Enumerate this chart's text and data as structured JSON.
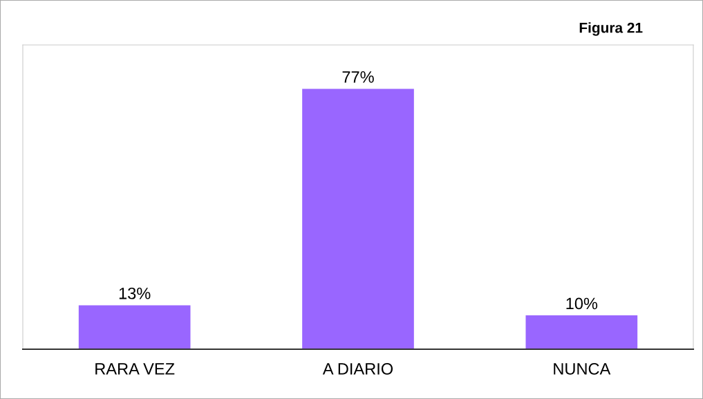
{
  "chart_data": {
    "type": "bar",
    "title": "Figura 21",
    "categories": [
      "RARA VEZ",
      "A DIARIO",
      "NUNCA"
    ],
    "values": [
      13,
      77,
      10
    ],
    "value_labels": [
      "13%",
      "77%",
      "10%"
    ],
    "color": "#9966ff",
    "ylim": [
      0,
      90
    ],
    "tick_labels": "x",
    "grid": false,
    "legend": false
  }
}
